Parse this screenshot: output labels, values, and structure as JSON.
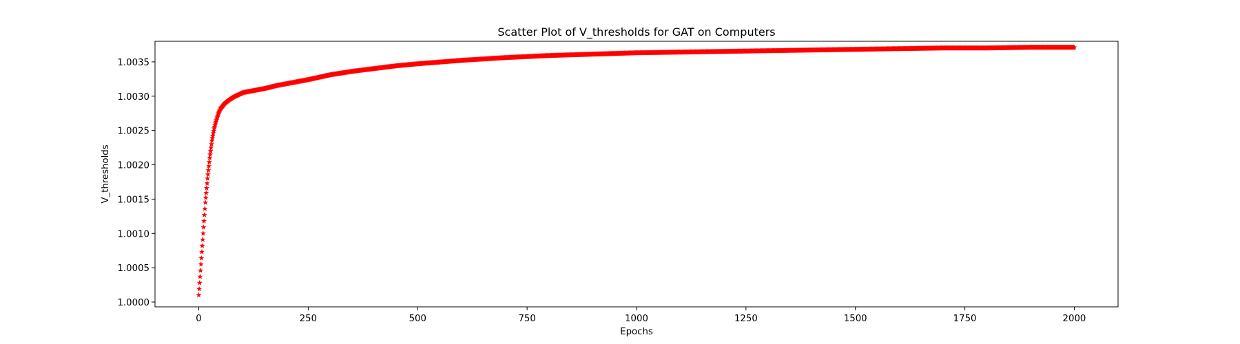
{
  "chart_data": {
    "type": "scatter",
    "title": "Scatter Plot of V_thresholds for GAT on Computers",
    "xlabel": "Epochs",
    "ylabel": "V_thresholds",
    "xlim": [
      -100,
      2100
    ],
    "ylim": [
      0.99993,
      1.0038
    ],
    "x_ticks": [
      0,
      250,
      500,
      750,
      1000,
      1250,
      1500,
      1750,
      2000
    ],
    "x_tick_labels": [
      "0",
      "250",
      "500",
      "750",
      "1000",
      "1250",
      "1500",
      "1750",
      "2000"
    ],
    "y_ticks": [
      1.0,
      1.0005,
      1.001,
      1.0015,
      1.002,
      1.0025,
      1.003,
      1.0035
    ],
    "y_tick_labels": [
      "1.0000",
      "1.0005",
      "1.0010",
      "1.0015",
      "1.0020",
      "1.0025",
      "1.0030",
      "1.0035"
    ],
    "marker": "star",
    "marker_color": "#ff0000",
    "grid": false,
    "legend": "none",
    "series": [
      {
        "x": [
          0,
          5,
          10,
          15,
          20,
          25,
          30,
          35,
          40,
          45,
          50,
          60,
          70,
          80,
          90,
          100,
          125,
          150,
          175,
          200,
          250,
          300,
          350,
          400,
          450,
          500,
          600,
          700,
          800,
          900,
          1000,
          1100,
          1200,
          1300,
          1400,
          1500,
          1600,
          1700,
          1800,
          1900,
          2000
        ],
        "y": [
          1.0001,
          1.00055,
          1.001,
          1.00145,
          1.0018,
          1.0021,
          1.00235,
          1.00253,
          1.00265,
          1.00275,
          1.00282,
          1.0029,
          1.00295,
          1.00299,
          1.00302,
          1.00305,
          1.00308,
          1.00311,
          1.00315,
          1.00318,
          1.00324,
          1.00331,
          1.00336,
          1.0034,
          1.00344,
          1.00347,
          1.00352,
          1.00356,
          1.00359,
          1.00361,
          1.00363,
          1.00364,
          1.00365,
          1.00366,
          1.00367,
          1.00368,
          1.00369,
          1.0037,
          1.0037,
          1.00371,
          1.00371
        ]
      }
    ]
  }
}
